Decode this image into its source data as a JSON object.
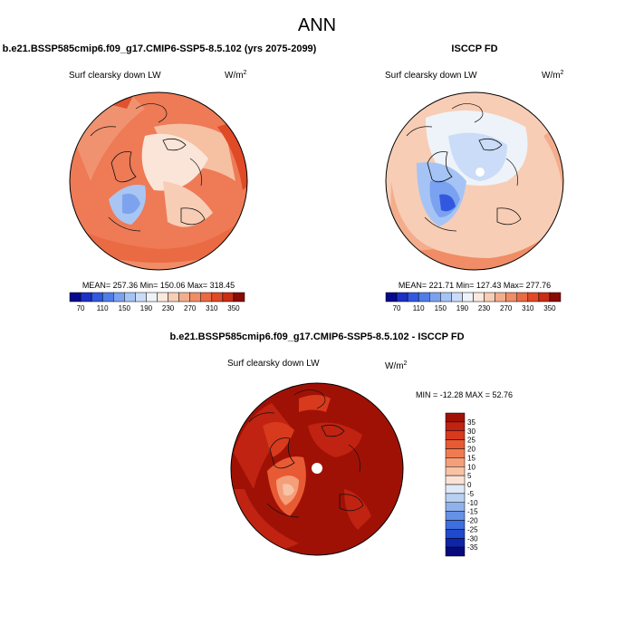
{
  "figure": {
    "title": "ANN",
    "panels": [
      {
        "id": "model",
        "title": "b.e21.BSSP585cmip6.f09_g17.CMIP6-SSP5-8.5.102 (yrs 2075-2099)",
        "variable": "Surf clearsky down LW",
        "units_base": "W/m",
        "units_exp": "2",
        "stats": "MEAN= 257.36  Min= 150.06  Max= 318.45"
      },
      {
        "id": "obs",
        "title": "ISCCP FD",
        "variable": "Surf clearsky down LW",
        "units_base": "W/m",
        "units_exp": "2",
        "stats": "MEAN= 221.71  Min= 127.43  Max= 277.76"
      },
      {
        "id": "diff",
        "title": "b.e21.BSSP585cmip6.f09_g17.CMIP6-SSP5-8.5.102 - ISCCP FD",
        "variable": "Surf clearsky down LW",
        "units_base": "W/m",
        "units_exp": "2",
        "stats": "MIN = -12.28 MAX =  52.76"
      }
    ],
    "colorbar_abs": {
      "labels": [
        "70",
        "110",
        "150",
        "190",
        "230",
        "270",
        "310",
        "350"
      ],
      "colors": [
        "#08088f",
        "#1d2fc4",
        "#3358e0",
        "#4f7de8",
        "#7ba2f0",
        "#a5c4f5",
        "#cadcf7",
        "#eef3fa",
        "#fbe9de",
        "#f8cdb5",
        "#f4ad8c",
        "#f08c66",
        "#ea6a43",
        "#e04a26",
        "#c92d13",
        "#8a0a05"
      ]
    },
    "colorbar_diff": {
      "labels": [
        "35",
        "30",
        "25",
        "20",
        "15",
        "10",
        "5",
        "0",
        "-5",
        "-10",
        "-15",
        "-20",
        "-25",
        "-30",
        "-35"
      ],
      "colors": [
        "#a01105",
        "#c02312",
        "#d83a1e",
        "#e85a34",
        "#f07b52",
        "#f49e7a",
        "#f8c2a6",
        "#fae3d6",
        "#dfe9f7",
        "#b8d0f2",
        "#8fb2ec",
        "#6592e6",
        "#3e6fe0",
        "#2049cc",
        "#0e25a8",
        "#060a7c"
      ]
    }
  }
}
